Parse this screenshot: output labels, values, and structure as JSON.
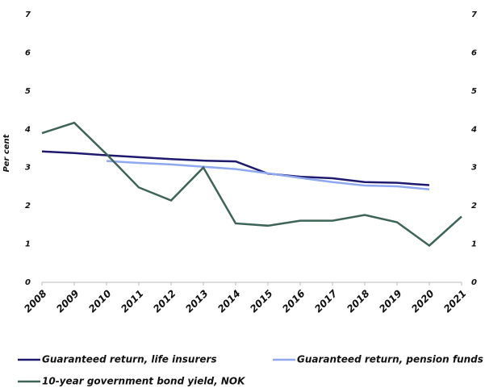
{
  "chart_data": {
    "type": "line",
    "y_label": "Per cent",
    "categories": [
      "2008",
      "2009",
      "2010",
      "2011",
      "2012",
      "2013",
      "2014",
      "2015",
      "2016",
      "2017",
      "2018",
      "2019",
      "2020",
      "2021"
    ],
    "series": [
      {
        "name": "Guaranteed return, life insurers",
        "color": "#1f1a6e",
        "values": [
          3.42,
          3.38,
          3.32,
          3.27,
          3.22,
          3.18,
          3.16,
          2.84,
          2.76,
          2.72,
          2.62,
          2.6,
          2.54,
          null
        ]
      },
      {
        "name": "Guaranteed return, pension funds",
        "color": "#8fa8f0",
        "values": [
          null,
          null,
          3.17,
          3.12,
          3.08,
          3.02,
          2.96,
          2.85,
          2.73,
          2.62,
          2.53,
          2.51,
          2.43,
          null
        ]
      },
      {
        "name": "10-year government bond yield, NOK",
        "color": "#3e6455",
        "values": [
          3.9,
          4.17,
          3.35,
          2.48,
          2.14,
          3.0,
          1.54,
          1.48,
          1.61,
          1.61,
          1.76,
          1.57,
          0.96,
          1.72
        ]
      }
    ],
    "ylim": [
      0,
      7
    ],
    "yticks": [
      0,
      1,
      2,
      3,
      4,
      5,
      6,
      7
    ],
    "y2lim": [
      0,
      7
    ],
    "y2ticks": [
      0,
      1,
      2,
      3,
      4,
      5,
      6,
      7
    ]
  }
}
